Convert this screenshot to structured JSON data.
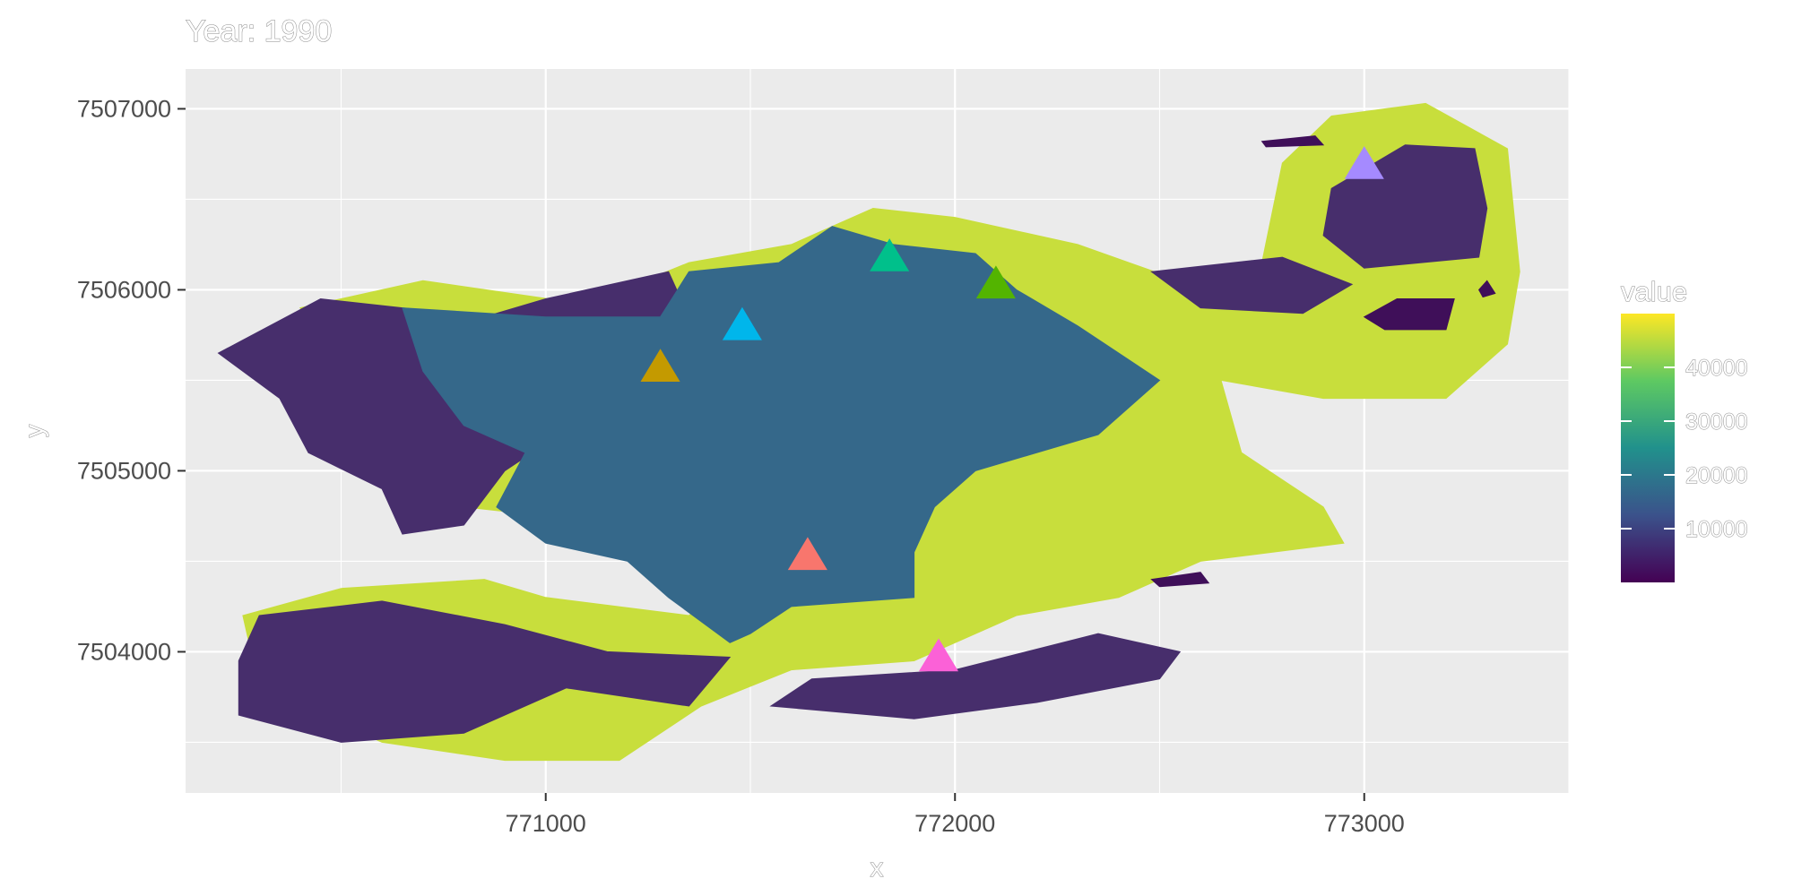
{
  "chart_data": {
    "type": "heatmap",
    "title": "Year: 1990",
    "xlabel": "x",
    "ylabel": "y",
    "xlim": [
      770120,
      773500
    ],
    "ylim": [
      7503220,
      7507220
    ],
    "x_ticks": [
      771000,
      772000,
      773000
    ],
    "x_tick_labels": [
      "771000",
      "772000",
      "773000"
    ],
    "y_ticks": [
      7504000,
      7505000,
      7506000,
      7507000
    ],
    "y_tick_labels": [
      "7504000",
      "7505000",
      "7506000",
      "7507000"
    ],
    "grid": true,
    "legend": {
      "title": "value",
      "placement": "right",
      "range": [
        0,
        50000
      ],
      "ticks": [
        10000,
        20000,
        30000,
        40000
      ],
      "tick_labels": [
        "10000",
        "20000",
        "30000",
        "40000"
      ]
    },
    "raster_regions": [
      {
        "name": "territory-yellow",
        "value": 45000,
        "color": "#c8de3c",
        "polygons": [
          [
            [
              770400,
              7505900
            ],
            [
              770700,
              7506050
            ],
            [
              771100,
              7505920
            ],
            [
              771350,
              7506150
            ],
            [
              771600,
              7506250
            ],
            [
              771800,
              7506450
            ],
            [
              772000,
              7506400
            ],
            [
              772300,
              7506250
            ],
            [
              772550,
              7506050
            ],
            [
              772750,
              7506150
            ],
            [
              772800,
              7506700
            ],
            [
              772920,
              7506960
            ],
            [
              773150,
              7507030
            ],
            [
              773350,
              7506780
            ],
            [
              773380,
              7506100
            ],
            [
              773350,
              7505700
            ],
            [
              773200,
              7505400
            ],
            [
              772900,
              7505400
            ],
            [
              772650,
              7505500
            ],
            [
              772700,
              7505100
            ],
            [
              772900,
              7504800
            ],
            [
              772950,
              7504600
            ],
            [
              772600,
              7504500
            ],
            [
              772400,
              7504300
            ],
            [
              772150,
              7504200
            ],
            [
              771900,
              7503950
            ],
            [
              771600,
              7503900
            ],
            [
              771380,
              7503700
            ],
            [
              771180,
              7503400
            ],
            [
              770900,
              7503400
            ],
            [
              770600,
              7503500
            ],
            [
              770300,
              7503800
            ],
            [
              770260,
              7504200
            ],
            [
              770500,
              7504350
            ],
            [
              770850,
              7504400
            ],
            [
              771000,
              7504300
            ],
            [
              771350,
              7504200
            ],
            [
              771500,
              7504500
            ],
            [
              771200,
              7504700
            ],
            [
              770800,
              7504800
            ],
            [
              770650,
              7505050
            ],
            [
              770700,
              7505300
            ],
            [
              770500,
              7505600
            ],
            [
              770400,
              7505900
            ]
          ]
        ]
      },
      {
        "name": "territory-dark-purple",
        "value": 3000,
        "color": "#472e6c",
        "polygons": [
          [
            [
              770200,
              7505650
            ],
            [
              770450,
              7505950
            ],
            [
              770850,
              7505850
            ],
            [
              771000,
              7505950
            ],
            [
              771300,
              7506100
            ],
            [
              771400,
              7505600
            ],
            [
              771100,
              7505300
            ],
            [
              770900,
              7505000
            ],
            [
              770800,
              7504700
            ],
            [
              770650,
              7504650
            ],
            [
              770600,
              7504900
            ],
            [
              770420,
              7505100
            ],
            [
              770350,
              7505400
            ],
            [
              770200,
              7505650
            ]
          ],
          [
            [
              772900,
              7506300
            ],
            [
              772920,
              7506560
            ],
            [
              773100,
              7506800
            ],
            [
              773270,
              7506780
            ],
            [
              773300,
              7506450
            ],
            [
              773280,
              7506180
            ],
            [
              773000,
              7506120
            ],
            [
              772900,
              7506300
            ]
          ],
          [
            [
              772480,
              7506100
            ],
            [
              772800,
              7506180
            ],
            [
              772970,
              7506030
            ],
            [
              772850,
              7505870
            ],
            [
              772600,
              7505900
            ],
            [
              772480,
              7506100
            ]
          ],
          [
            [
              770250,
              7503950
            ],
            [
              770300,
              7504200
            ],
            [
              770600,
              7504280
            ],
            [
              770900,
              7504150
            ],
            [
              771150,
              7504000
            ],
            [
              771450,
              7503970
            ],
            [
              771350,
              7503700
            ],
            [
              771050,
              7503800
            ],
            [
              770800,
              7503550
            ],
            [
              770500,
              7503500
            ],
            [
              770250,
              7503650
            ],
            [
              770250,
              7503950
            ]
          ],
          [
            [
              771550,
              7503700
            ],
            [
              771650,
              7503850
            ],
            [
              772000,
              7503900
            ],
            [
              772350,
              7504100
            ],
            [
              772550,
              7504000
            ],
            [
              772500,
              7503850
            ],
            [
              772200,
              7503720
            ],
            [
              771900,
              7503630
            ],
            [
              771550,
              7503700
            ]
          ]
        ]
      },
      {
        "name": "territory-very-dark",
        "value": 500,
        "color": "#3f0f59",
        "polygons": [
          [
            [
              773000,
              7505850
            ],
            [
              773080,
              7505950
            ],
            [
              773220,
              7505950
            ],
            [
              773200,
              7505780
            ],
            [
              773050,
              7505780
            ],
            [
              773000,
              7505850
            ]
          ],
          [
            [
              772750,
              7506820
            ],
            [
              772880,
              7506850
            ],
            [
              772900,
              7506800
            ],
            [
              772760,
              7506790
            ],
            [
              772750,
              7506820
            ]
          ],
          [
            [
              772480,
              7504400
            ],
            [
              772600,
              7504440
            ],
            [
              772620,
              7504380
            ],
            [
              772500,
              7504360
            ],
            [
              772480,
              7504400
            ]
          ],
          [
            [
              773280,
              7506000
            ],
            [
              773300,
              7506050
            ],
            [
              773320,
              7505980
            ],
            [
              773290,
              7505960
            ],
            [
              773280,
              7506000
            ]
          ]
        ]
      },
      {
        "name": "territory-teal-blue",
        "value": 17000,
        "color": "#35688a",
        "polygons": [
          [
            [
              770650,
              7505900
            ],
            [
              771000,
              7505850
            ],
            [
              771280,
              7505850
            ],
            [
              771350,
              7506100
            ],
            [
              771570,
              7506150
            ],
            [
              771700,
              7506350
            ],
            [
              771850,
              7506250
            ],
            [
              772050,
              7506200
            ],
            [
              772150,
              7506000
            ],
            [
              772300,
              7505800
            ],
            [
              772500,
              7505500
            ],
            [
              772350,
              7505200
            ],
            [
              772050,
              7505000
            ],
            [
              771950,
              7504800
            ],
            [
              771900,
              7504550
            ],
            [
              771900,
              7504300
            ],
            [
              771600,
              7504250
            ],
            [
              771500,
              7504100
            ],
            [
              771450,
              7504050
            ],
            [
              771300,
              7504300
            ],
            [
              771200,
              7504500
            ],
            [
              771000,
              7504600
            ],
            [
              770880,
              7504800
            ],
            [
              770950,
              7505100
            ],
            [
              770800,
              7505250
            ],
            [
              770700,
              7505550
            ],
            [
              770650,
              7505900
            ]
          ]
        ]
      }
    ],
    "markers": [
      {
        "name": "point-1",
        "x": 771640,
        "y": 7504530,
        "color": "#f8766d"
      },
      {
        "name": "point-2",
        "x": 771280,
        "y": 7505570,
        "color": "#c49a00"
      },
      {
        "name": "point-3",
        "x": 771480,
        "y": 7505800,
        "color": "#00b6eb"
      },
      {
        "name": "point-4",
        "x": 771840,
        "y": 7506180,
        "color": "#00c08b"
      },
      {
        "name": "point-5",
        "x": 772100,
        "y": 7506030,
        "color": "#53b400"
      },
      {
        "name": "point-6",
        "x": 771960,
        "y": 7503970,
        "color": "#fb61d7"
      },
      {
        "name": "point-7",
        "x": 773000,
        "y": 7506690,
        "color": "#a58aff"
      }
    ]
  }
}
